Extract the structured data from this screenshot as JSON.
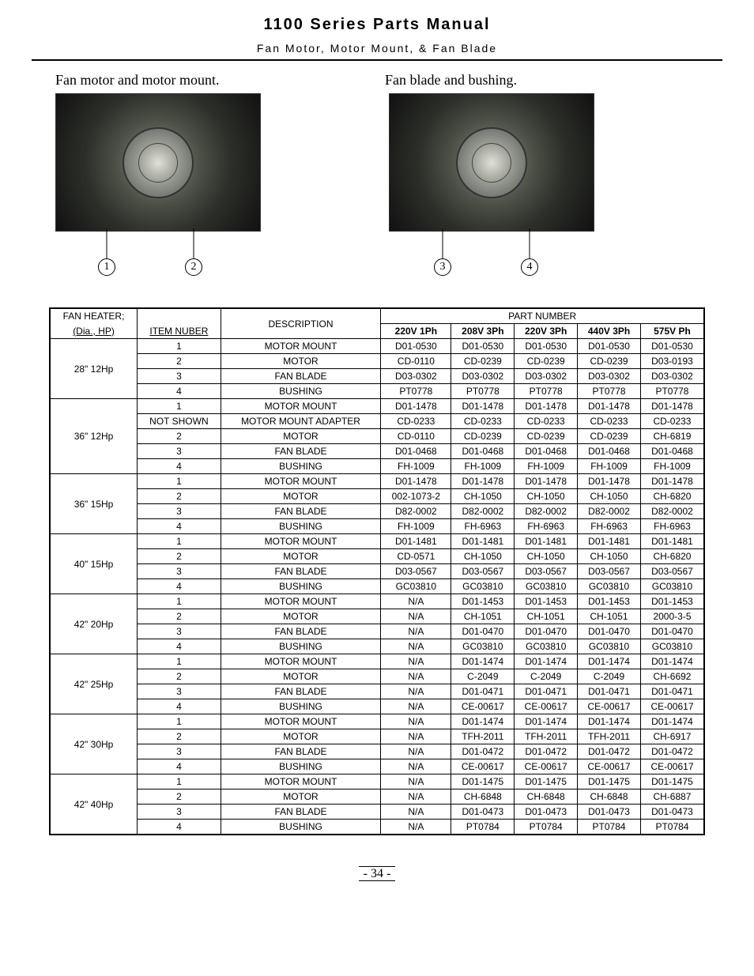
{
  "header": {
    "title": "1100 Series Parts Manual",
    "subtitle": "Fan Motor, Motor Mount, & Fan Blade"
  },
  "captions": {
    "left": "Fan motor and motor mount.",
    "right": "Fan blade and bushing."
  },
  "callouts": {
    "c1": "1",
    "c2": "2",
    "c3": "3",
    "c4": "4"
  },
  "table": {
    "head": {
      "fan_heater": "FAN HEATER;",
      "dia_hp": "(Dia., HP)",
      "item_number": "ITEM NUBER",
      "description": "DESCRIPTION",
      "part_number": "PART NUMBER",
      "cols": [
        "220V 1Ph",
        "208V 3Ph",
        "220V 3Ph",
        "440V 3Ph",
        "575V Ph"
      ]
    },
    "groups": [
      {
        "label": "28\" 12Hp",
        "rows": [
          {
            "item": "1",
            "desc": "MOTOR MOUNT",
            "p": [
              "D01-0530",
              "D01-0530",
              "D01-0530",
              "D01-0530",
              "D01-0530"
            ]
          },
          {
            "item": "2",
            "desc": "MOTOR",
            "p": [
              "CD-0110",
              "CD-0239",
              "CD-0239",
              "CD-0239",
              "D03-0193"
            ]
          },
          {
            "item": "3",
            "desc": "FAN BLADE",
            "p": [
              "D03-0302",
              "D03-0302",
              "D03-0302",
              "D03-0302",
              "D03-0302"
            ]
          },
          {
            "item": "4",
            "desc": "BUSHING",
            "p": [
              "PT0778",
              "PT0778",
              "PT0778",
              "PT0778",
              "PT0778"
            ]
          }
        ]
      },
      {
        "label": "36\" 12Hp",
        "rows": [
          {
            "item": "1",
            "desc": "MOTOR MOUNT",
            "p": [
              "D01-1478",
              "D01-1478",
              "D01-1478",
              "D01-1478",
              "D01-1478"
            ]
          },
          {
            "item": "NOT SHOWN",
            "desc": "MOTOR MOUNT ADAPTER",
            "p": [
              "CD-0233",
              "CD-0233",
              "CD-0233",
              "CD-0233",
              "CD-0233"
            ]
          },
          {
            "item": "2",
            "desc": "MOTOR",
            "p": [
              "CD-0110",
              "CD-0239",
              "CD-0239",
              "CD-0239",
              "CH-6819"
            ]
          },
          {
            "item": "3",
            "desc": "FAN BLADE",
            "p": [
              "D01-0468",
              "D01-0468",
              "D01-0468",
              "D01-0468",
              "D01-0468"
            ]
          },
          {
            "item": "4",
            "desc": "BUSHING",
            "p": [
              "FH-1009",
              "FH-1009",
              "FH-1009",
              "FH-1009",
              "FH-1009"
            ]
          }
        ]
      },
      {
        "label": "36\" 15Hp",
        "rows": [
          {
            "item": "1",
            "desc": "MOTOR MOUNT",
            "p": [
              "D01-1478",
              "D01-1478",
              "D01-1478",
              "D01-1478",
              "D01-1478"
            ]
          },
          {
            "item": "2",
            "desc": "MOTOR",
            "p": [
              "002-1073-2",
              "CH-1050",
              "CH-1050",
              "CH-1050",
              "CH-6820"
            ]
          },
          {
            "item": "3",
            "desc": "FAN BLADE",
            "p": [
              "D82-0002",
              "D82-0002",
              "D82-0002",
              "D82-0002",
              "D82-0002"
            ]
          },
          {
            "item": "4",
            "desc": "BUSHING",
            "p": [
              "FH-1009",
              "FH-6963",
              "FH-6963",
              "FH-6963",
              "FH-6963"
            ]
          }
        ]
      },
      {
        "label": "40\" 15Hp",
        "rows": [
          {
            "item": "1",
            "desc": "MOTOR MOUNT",
            "p": [
              "D01-1481",
              "D01-1481",
              "D01-1481",
              "D01-1481",
              "D01-1481"
            ]
          },
          {
            "item": "2",
            "desc": "MOTOR",
            "p": [
              "CD-0571",
              "CH-1050",
              "CH-1050",
              "CH-1050",
              "CH-6820"
            ]
          },
          {
            "item": "3",
            "desc": "FAN BLADE",
            "p": [
              "D03-0567",
              "D03-0567",
              "D03-0567",
              "D03-0567",
              "D03-0567"
            ]
          },
          {
            "item": "4",
            "desc": "BUSHING",
            "p": [
              "GC03810",
              "GC03810",
              "GC03810",
              "GC03810",
              "GC03810"
            ]
          }
        ]
      },
      {
        "label": "42\" 20Hp",
        "rows": [
          {
            "item": "1",
            "desc": "MOTOR MOUNT",
            "p": [
              "N/A",
              "D01-1453",
              "D01-1453",
              "D01-1453",
              "D01-1453"
            ]
          },
          {
            "item": "2",
            "desc": "MOTOR",
            "p": [
              "N/A",
              "CH-1051",
              "CH-1051",
              "CH-1051",
              "2000-3-5"
            ]
          },
          {
            "item": "3",
            "desc": "FAN BLADE",
            "p": [
              "N/A",
              "D01-0470",
              "D01-0470",
              "D01-0470",
              "D01-0470"
            ]
          },
          {
            "item": "4",
            "desc": "BUSHING",
            "p": [
              "N/A",
              "GC03810",
              "GC03810",
              "GC03810",
              "GC03810"
            ]
          }
        ]
      },
      {
        "label": "42\" 25Hp",
        "rows": [
          {
            "item": "1",
            "desc": "MOTOR MOUNT",
            "p": [
              "N/A",
              "D01-1474",
              "D01-1474",
              "D01-1474",
              "D01-1474"
            ]
          },
          {
            "item": "2",
            "desc": "MOTOR",
            "p": [
              "N/A",
              "C-2049",
              "C-2049",
              "C-2049",
              "CH-6692"
            ]
          },
          {
            "item": "3",
            "desc": "FAN BLADE",
            "p": [
              "N/A",
              "D01-0471",
              "D01-0471",
              "D01-0471",
              "D01-0471"
            ]
          },
          {
            "item": "4",
            "desc": "BUSHING",
            "p": [
              "N/A",
              "CE-00617",
              "CE-00617",
              "CE-00617",
              "CE-00617"
            ]
          }
        ]
      },
      {
        "label": "42\" 30Hp",
        "rows": [
          {
            "item": "1",
            "desc": "MOTOR MOUNT",
            "p": [
              "N/A",
              "D01-1474",
              "D01-1474",
              "D01-1474",
              "D01-1474"
            ]
          },
          {
            "item": "2",
            "desc": "MOTOR",
            "p": [
              "N/A",
              "TFH-2011",
              "TFH-2011",
              "TFH-2011",
              "CH-6917"
            ]
          },
          {
            "item": "3",
            "desc": "FAN BLADE",
            "p": [
              "N/A",
              "D01-0472",
              "D01-0472",
              "D01-0472",
              "D01-0472"
            ]
          },
          {
            "item": "4",
            "desc": "BUSHING",
            "p": [
              "N/A",
              "CE-00617",
              "CE-00617",
              "CE-00617",
              "CE-00617"
            ]
          }
        ]
      },
      {
        "label": "42\" 40Hp",
        "rows": [
          {
            "item": "1",
            "desc": "MOTOR MOUNT",
            "p": [
              "N/A",
              "D01-1475",
              "D01-1475",
              "D01-1475",
              "D01-1475"
            ]
          },
          {
            "item": "2",
            "desc": "MOTOR",
            "p": [
              "N/A",
              "CH-6848",
              "CH-6848",
              "CH-6848",
              "CH-6887"
            ]
          },
          {
            "item": "3",
            "desc": "FAN BLADE",
            "p": [
              "N/A",
              "D01-0473",
              "D01-0473",
              "D01-0473",
              "D01-0473"
            ]
          },
          {
            "item": "4",
            "desc": "BUSHING",
            "p": [
              "N/A",
              "PT0784",
              "PT0784",
              "PT0784",
              "PT0784"
            ]
          }
        ]
      }
    ]
  },
  "footer": {
    "page": "- 34 -"
  }
}
